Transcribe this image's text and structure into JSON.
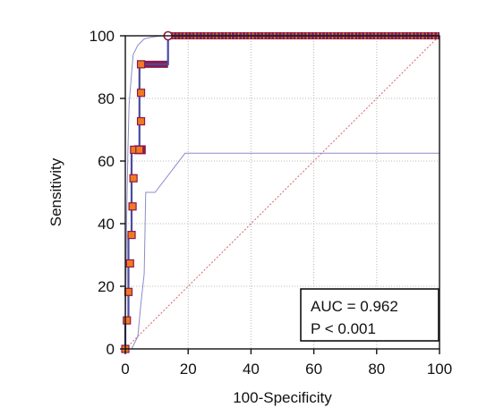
{
  "chart_data": {
    "type": "line",
    "xlabel": "100-Specificity",
    "ylabel": "Sensitivity",
    "xlim": [
      0,
      100
    ],
    "ylim": [
      0,
      100
    ],
    "x_ticks": [
      0,
      20,
      40,
      60,
      80,
      100
    ],
    "y_ticks": [
      0,
      20,
      40,
      60,
      80,
      100
    ],
    "grid": true,
    "colors": {
      "roc": "#4b4ba0",
      "ci": "#8b8bcc",
      "reference": "#e06060",
      "marker_fill": "#f07a20",
      "marker_edge": "#8b1a4a",
      "grid": "#b8b8b8"
    },
    "roc_curve": {
      "x": [
        0,
        0,
        1,
        1,
        1,
        1,
        2,
        2,
        2,
        2,
        2,
        4.5,
        4.5,
        4.5,
        4.5,
        13.6,
        13.6,
        100
      ],
      "y": [
        0,
        9.1,
        9.1,
        18.2,
        27.3,
        36.4,
        36.4,
        45.5,
        54.5,
        63.6,
        63.6,
        63.6,
        72.7,
        81.8,
        90.9,
        90.9,
        100,
        100
      ]
    },
    "criterion_points": {
      "x": [
        0,
        0.5,
        1,
        1.5,
        2,
        2.3,
        2.6,
        2.8,
        4.5,
        5,
        5,
        5
      ],
      "y": [
        0,
        9.1,
        18.2,
        27.3,
        36.4,
        45.5,
        54.5,
        63.6,
        63.6,
        72.7,
        81.8,
        90.9
      ]
    },
    "ci_upper": {
      "x": [
        0,
        0.4,
        0.8,
        1.2,
        2,
        2.5,
        4,
        6,
        8,
        10,
        12,
        100,
        100
      ],
      "y": [
        0,
        40,
        62,
        78,
        88,
        94,
        97,
        99,
        99.5,
        99.8,
        100,
        100,
        100
      ]
    },
    "ci_lower": {
      "x": [
        0,
        2,
        3,
        4,
        5,
        6,
        6.5,
        9.5,
        9.5,
        19,
        19,
        100,
        100
      ],
      "y": [
        0,
        0,
        2,
        4,
        15,
        24,
        50,
        50,
        50,
        62.5,
        62.5,
        62.5,
        100
      ]
    },
    "reference_line": {
      "x": [
        0,
        100
      ],
      "y": [
        0,
        100
      ]
    },
    "annotations": [
      "AUC = 0.962",
      "P < 0.001"
    ],
    "legend_position": "bottom-right"
  }
}
